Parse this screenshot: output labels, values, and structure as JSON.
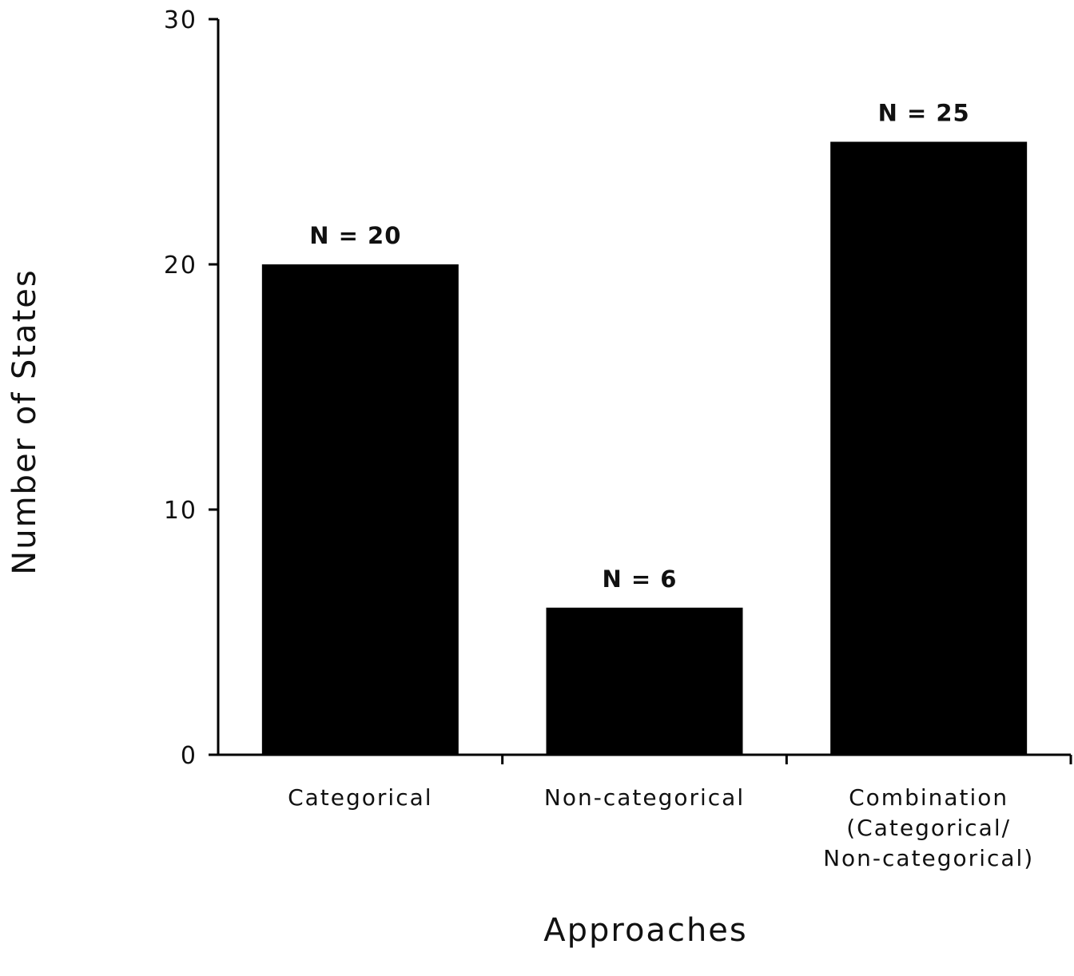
{
  "chart_data": {
    "type": "bar",
    "categories": [
      [
        "Categorical"
      ],
      [
        "Non-categorical"
      ],
      [
        "Combination",
        "(Categorical/",
        "Non-categorical)"
      ]
    ],
    "values": [
      20,
      6,
      25
    ],
    "data_labels": [
      "N = 20",
      "N = 6",
      "N = 25"
    ],
    "xlabel": "Approaches",
    "ylabel": "Number of States",
    "ylim": [
      0,
      30
    ],
    "yticks": [
      0,
      10,
      20,
      30
    ],
    "grid": false,
    "legend": "none",
    "bar_color": "#000000",
    "axis_color": "#000000"
  }
}
